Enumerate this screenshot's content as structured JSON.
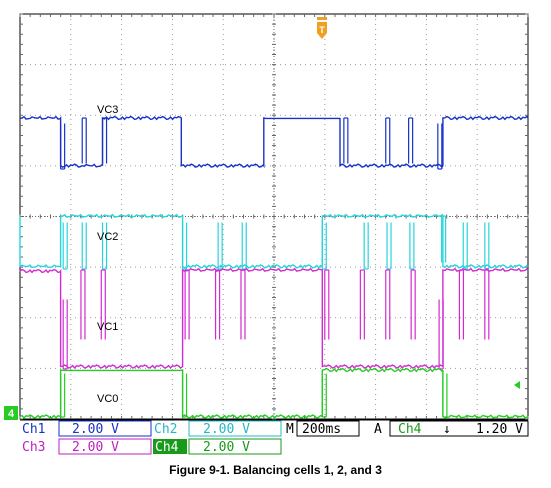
{
  "caption": "Figure 9-1. Balancing cells 1, 2, and 3",
  "colors": {
    "ch1": "#1832c8",
    "ch2": "#26d4dc",
    "ch3": "#d22ad2",
    "ch4": "#24cc24",
    "grid": "#9a9a9a",
    "trigger": "#f0a020"
  },
  "chart_data": {
    "type": "line",
    "title": "",
    "xlabel": "",
    "ylabel": "",
    "xlim": [
      0,
      2000
    ],
    "x_units": "ms",
    "grid": true,
    "divisions": {
      "x": 10,
      "y": 8
    },
    "series": [
      {
        "name": "VC3",
        "channel": "Ch1",
        "color": "#1832c8",
        "label": "VC3",
        "points": [
          [
            0,
            1.0
          ],
          [
            160,
            1.0
          ],
          [
            160,
            -0.87
          ],
          [
            245,
            -0.87
          ],
          [
            325,
            -0.87
          ],
          [
            325,
            0.0
          ],
          [
            325,
            1.0
          ],
          [
            635,
            1.0
          ],
          [
            635,
            -0.87
          ],
          [
            960,
            -0.87
          ],
          [
            960,
            1.0
          ],
          [
            1260,
            1.0
          ],
          [
            1260,
            -0.87
          ],
          [
            1665,
            -0.87
          ],
          [
            1665,
            1.0
          ],
          [
            2000,
            1.0
          ]
        ]
      },
      {
        "name": "VC2",
        "channel": "Ch2",
        "color": "#26d4dc",
        "label": "VC2",
        "points": [
          [
            0,
            1.0
          ],
          [
            0,
            -0.9
          ],
          [
            160,
            -0.9
          ],
          [
            160,
            1.0
          ],
          [
            640,
            1.0
          ],
          [
            640,
            -0.9
          ],
          [
            1190,
            -0.9
          ],
          [
            1190,
            1.0
          ],
          [
            1665,
            1.0
          ],
          [
            1665,
            -0.9
          ],
          [
            2000,
            -0.9
          ]
        ]
      },
      {
        "name": "VC1",
        "channel": "Ch3",
        "color": "#d22ad2",
        "label": "VC1",
        "points": [
          [
            0,
            1.0
          ],
          [
            0,
            0.98
          ],
          [
            160,
            0.98
          ],
          [
            160,
            -0.95
          ],
          [
            640,
            -0.95
          ],
          [
            640,
            1.0
          ],
          [
            1190,
            1.0
          ],
          [
            1190,
            -0.95
          ],
          [
            1665,
            -0.95
          ],
          [
            1665,
            1.0
          ],
          [
            2000,
            1.0
          ]
        ]
      },
      {
        "name": "VC0",
        "channel": "Ch4",
        "color": "#24cc24",
        "label": "VC0",
        "points": [
          [
            0,
            -0.98
          ],
          [
            160,
            -0.98
          ],
          [
            160,
            1.0
          ],
          [
            640,
            1.0
          ],
          [
            640,
            -0.98
          ],
          [
            1190,
            -0.98
          ],
          [
            1190,
            1.0
          ],
          [
            1665,
            1.0
          ],
          [
            1665,
            -0.98
          ],
          [
            2000,
            -0.98
          ]
        ]
      }
    ],
    "pulses": {
      "Ch1": [
        [
          160,
          -1
        ],
        [
          245,
          1
        ],
        [
          325,
          1
        ],
        [
          1275,
          1
        ],
        [
          1440,
          1
        ],
        [
          1530,
          1
        ],
        [
          1645,
          -1
        ]
      ],
      "Ch2": [
        [
          170,
          -1
        ],
        [
          245,
          -1
        ],
        [
          325,
          -1
        ],
        [
          640,
          -1
        ],
        [
          780,
          -1
        ],
        [
          875,
          -1
        ],
        [
          1190,
          -1
        ],
        [
          1355,
          -1
        ],
        [
          1445,
          -1
        ],
        [
          1535,
          -1
        ],
        [
          1660,
          1
        ],
        [
          1745,
          -1
        ],
        [
          1830,
          -1
        ]
      ],
      "Ch3": [
        [
          170,
          -1
        ],
        [
          240,
          1
        ],
        [
          320,
          1
        ],
        [
          650,
          1
        ],
        [
          770,
          1
        ],
        [
          870,
          1
        ],
        [
          1200,
          1
        ],
        [
          1340,
          1
        ],
        [
          1440,
          1
        ],
        [
          1540,
          1
        ],
        [
          1650,
          -1
        ],
        [
          1730,
          1
        ],
        [
          1830,
          1
        ]
      ],
      "Ch4": [
        [
          160,
          -1
        ],
        [
          640,
          -1
        ],
        [
          1190,
          -1
        ],
        [
          1665,
          -1
        ]
      ]
    }
  },
  "readout": {
    "ch1_label": "Ch1",
    "ch1_scale": "2.00 V",
    "ch2_label": "Ch2",
    "ch2_scale": "2.00 V",
    "ch3_label": "Ch3",
    "ch3_scale": "2.00 V",
    "ch4_label": "Ch4",
    "ch4_scale": "2.00 V",
    "time_prefix": "M",
    "timebase": "200ms",
    "trigger_mode": "A",
    "trigger_source": "Ch4",
    "trigger_slope": "↓",
    "trigger_level": "1.20 V"
  },
  "markers": {
    "ground_ch4": "4",
    "trigger_pos": "T"
  }
}
